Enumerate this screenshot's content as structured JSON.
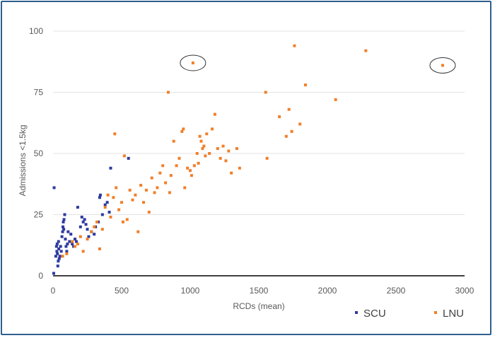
{
  "chart_data": {
    "type": "scatter",
    "title": "",
    "xlabel": "RCDs (mean)",
    "ylabel": "Admissions <1.5kg",
    "xlim": [
      0,
      3000
    ],
    "ylim": [
      0,
      100
    ],
    "xticks": [
      0,
      500,
      1000,
      1500,
      2000,
      2500,
      3000
    ],
    "yticks": [
      0,
      25,
      50,
      75,
      100
    ],
    "grid": "horizontal",
    "legend": "bottom-right",
    "series": [
      {
        "name": "SCU",
        "color": "#2e3a9e",
        "points": [
          [
            5,
            1
          ],
          [
            8,
            36
          ],
          [
            20,
            8
          ],
          [
            25,
            12
          ],
          [
            28,
            10
          ],
          [
            30,
            13
          ],
          [
            32,
            9
          ],
          [
            35,
            4
          ],
          [
            38,
            6
          ],
          [
            40,
            14
          ],
          [
            42,
            11
          ],
          [
            45,
            7
          ],
          [
            50,
            8
          ],
          [
            55,
            12
          ],
          [
            60,
            10
          ],
          [
            65,
            16
          ],
          [
            70,
            18
          ],
          [
            72,
            20
          ],
          [
            75,
            22
          ],
          [
            78,
            19
          ],
          [
            80,
            23
          ],
          [
            85,
            25
          ],
          [
            90,
            15
          ],
          [
            95,
            12
          ],
          [
            100,
            10
          ],
          [
            105,
            13
          ],
          [
            110,
            18
          ],
          [
            120,
            14
          ],
          [
            130,
            17
          ],
          [
            140,
            13
          ],
          [
            150,
            12
          ],
          [
            160,
            15
          ],
          [
            170,
            14
          ],
          [
            180,
            28
          ],
          [
            200,
            20
          ],
          [
            210,
            24
          ],
          [
            220,
            22
          ],
          [
            230,
            23
          ],
          [
            240,
            21
          ],
          [
            250,
            19
          ],
          [
            260,
            16
          ],
          [
            280,
            18
          ],
          [
            300,
            17
          ],
          [
            310,
            20
          ],
          [
            330,
            22
          ],
          [
            340,
            32
          ],
          [
            345,
            33
          ],
          [
            360,
            25
          ],
          [
            380,
            29
          ],
          [
            395,
            30
          ],
          [
            410,
            26
          ],
          [
            420,
            44
          ],
          [
            550,
            48
          ]
        ]
      },
      {
        "name": "LNU",
        "color": "#f07f2a",
        "points": [
          [
            70,
            8
          ],
          [
            100,
            9
          ],
          [
            140,
            14
          ],
          [
            160,
            12
          ],
          [
            180,
            13
          ],
          [
            200,
            16
          ],
          [
            220,
            10
          ],
          [
            250,
            15
          ],
          [
            280,
            18
          ],
          [
            300,
            20
          ],
          [
            320,
            22
          ],
          [
            340,
            11
          ],
          [
            360,
            19
          ],
          [
            380,
            28
          ],
          [
            400,
            33
          ],
          [
            420,
            24
          ],
          [
            440,
            32
          ],
          [
            450,
            58
          ],
          [
            460,
            36
          ],
          [
            480,
            27
          ],
          [
            500,
            30
          ],
          [
            510,
            22
          ],
          [
            520,
            49
          ],
          [
            540,
            23
          ],
          [
            560,
            35
          ],
          [
            580,
            31
          ],
          [
            600,
            33
          ],
          [
            620,
            18
          ],
          [
            640,
            37
          ],
          [
            660,
            30
          ],
          [
            680,
            35
          ],
          [
            700,
            26
          ],
          [
            720,
            40
          ],
          [
            740,
            34
          ],
          [
            760,
            36
          ],
          [
            780,
            42
          ],
          [
            800,
            45
          ],
          [
            820,
            38
          ],
          [
            840,
            75
          ],
          [
            850,
            34
          ],
          [
            860,
            41
          ],
          [
            880,
            55
          ],
          [
            900,
            45
          ],
          [
            920,
            48
          ],
          [
            940,
            59
          ],
          [
            950,
            60
          ],
          [
            960,
            36
          ],
          [
            980,
            44
          ],
          [
            1000,
            43
          ],
          [
            1010,
            41
          ],
          [
            1020,
            87
          ],
          [
            1030,
            45
          ],
          [
            1050,
            50
          ],
          [
            1060,
            46
          ],
          [
            1070,
            57
          ],
          [
            1080,
            55
          ],
          [
            1090,
            52
          ],
          [
            1100,
            53
          ],
          [
            1110,
            49
          ],
          [
            1120,
            58
          ],
          [
            1140,
            50
          ],
          [
            1160,
            60
          ],
          [
            1180,
            66
          ],
          [
            1200,
            52
          ],
          [
            1220,
            48
          ],
          [
            1240,
            53
          ],
          [
            1260,
            47
          ],
          [
            1280,
            51
          ],
          [
            1300,
            42
          ],
          [
            1340,
            52
          ],
          [
            1360,
            44
          ],
          [
            1550,
            75
          ],
          [
            1560,
            48
          ],
          [
            1650,
            65
          ],
          [
            1700,
            57
          ],
          [
            1720,
            68
          ],
          [
            1740,
            59
          ],
          [
            1760,
            94
          ],
          [
            1800,
            62
          ],
          [
            1840,
            78
          ],
          [
            2060,
            72
          ],
          [
            2280,
            92
          ],
          [
            2840,
            86
          ]
        ]
      }
    ],
    "annotations": [
      {
        "shape": "ellipse",
        "target": [
          1020,
          87
        ]
      },
      {
        "shape": "ellipse",
        "target": [
          2840,
          86
        ]
      }
    ]
  }
}
